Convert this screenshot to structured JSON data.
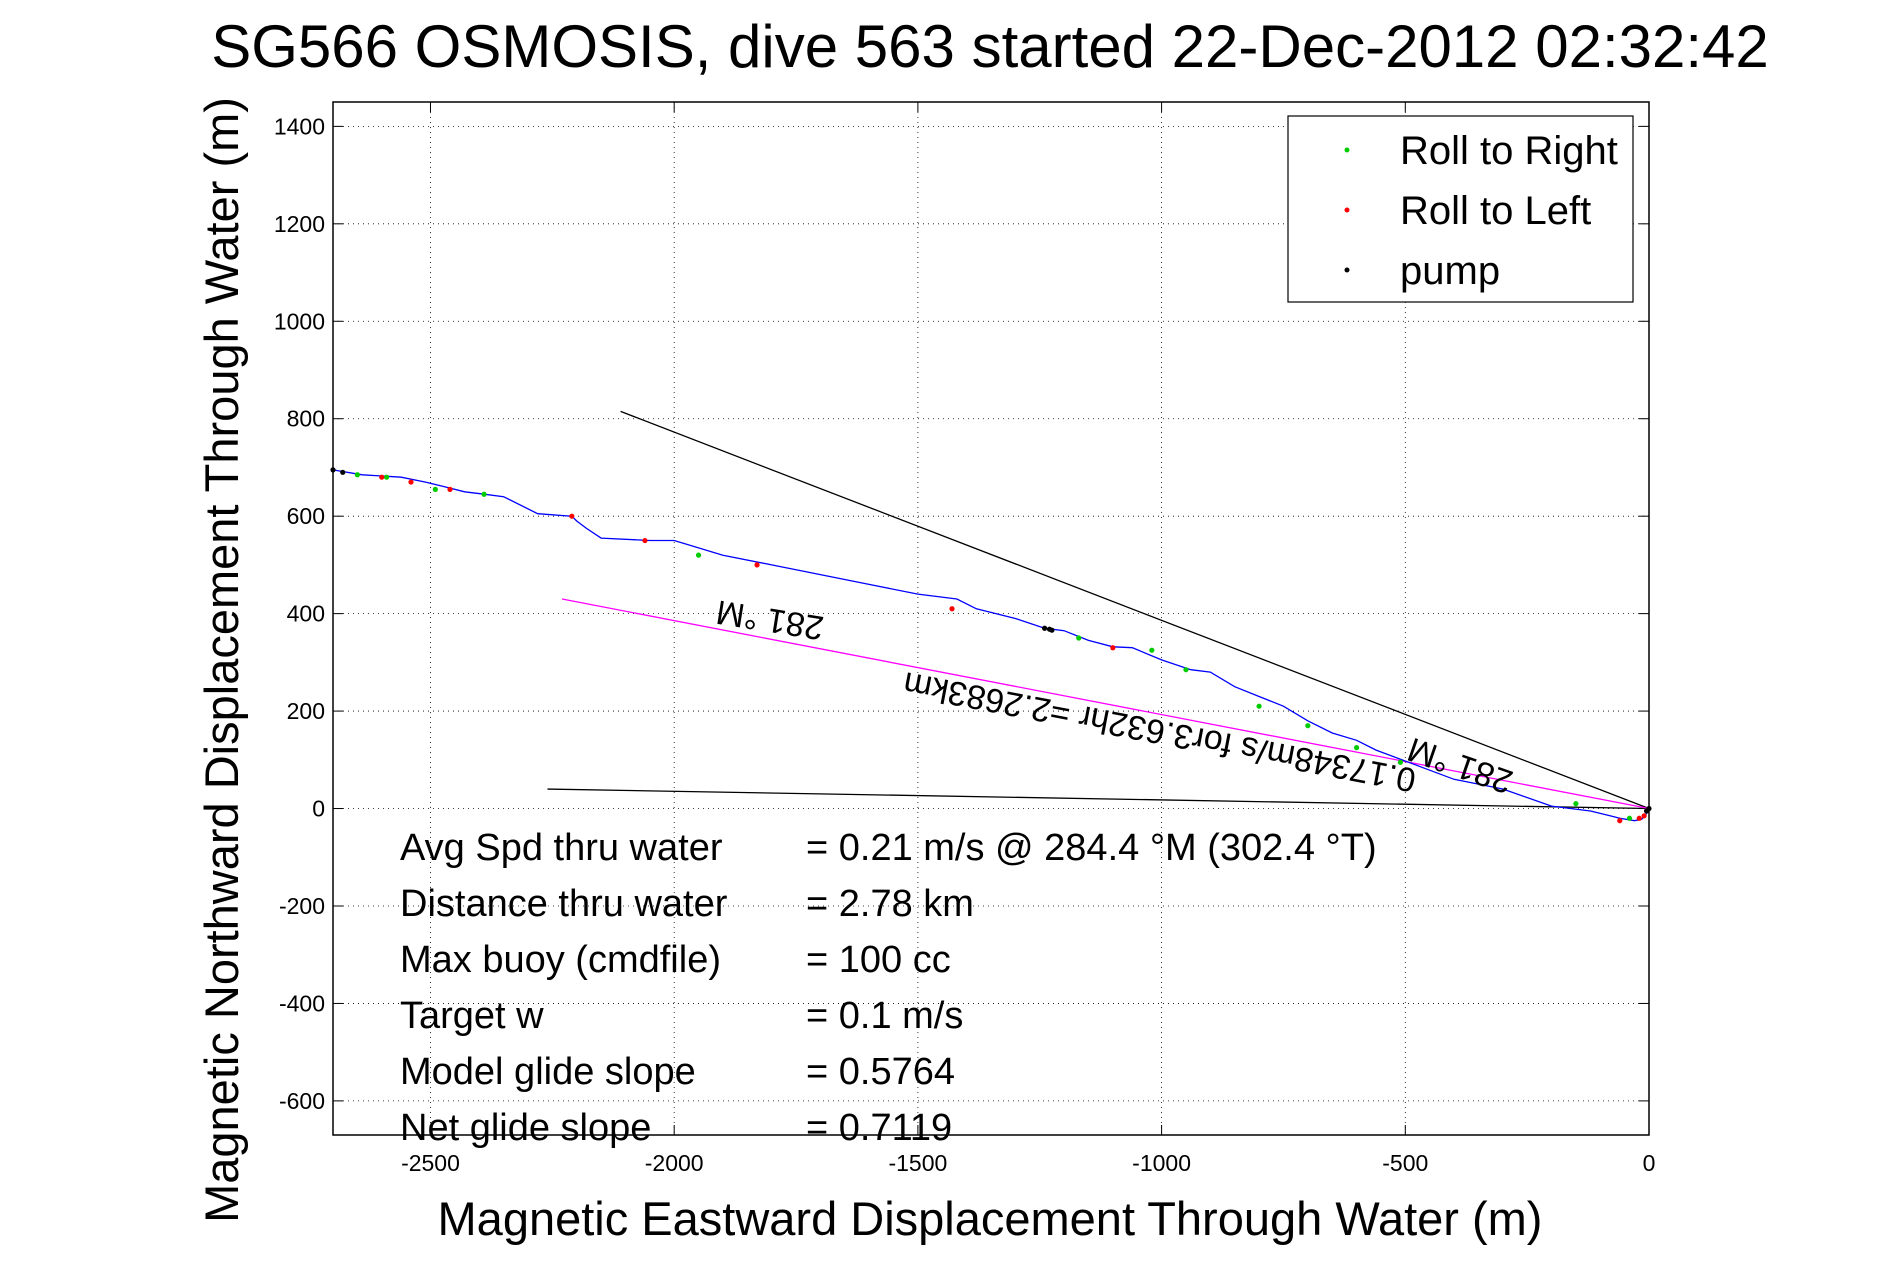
{
  "chart_data": {
    "type": "scatter",
    "title": "SG566 OSMOSIS, dive 563 started 22-Dec-2012 02:32:42",
    "xlabel": "Magnetic Eastward Displacement Through Water (m)",
    "ylabel": "Magnetic Northward Displacement Through Water (m)",
    "xlim": [
      -2700,
      0
    ],
    "ylim": [
      -670,
      1450
    ],
    "xticks": [
      -2500,
      -2000,
      -1500,
      -1000,
      -500,
      0
    ],
    "yticks": [
      -600,
      -400,
      -200,
      0,
      200,
      400,
      600,
      800,
      1000,
      1200,
      1400
    ],
    "grid": true,
    "legend_position": "top-right",
    "legend": [
      {
        "name": "Roll to Right",
        "color": "#00cc00"
      },
      {
        "name": "Roll to Left",
        "color": "#ff0000"
      },
      {
        "name": "pump",
        "color": "#000000"
      }
    ],
    "track": {
      "color": "#0000ff",
      "x": [
        0,
        -5,
        -15,
        -30,
        -60,
        -80,
        -120,
        -200,
        -300,
        -400,
        -480,
        -560,
        -600,
        -650,
        -700,
        -750,
        -800,
        -850,
        -900,
        -940,
        -1000,
        -1060,
        -1100,
        -1150,
        -1200,
        -1240,
        -1300,
        -1380,
        -1420,
        -1500,
        -1600,
        -1700,
        -1800,
        -1900,
        -2000,
        -2050,
        -2150,
        -2180,
        -2200,
        -2210,
        -2280,
        -2350,
        -2390,
        -2430,
        -2470,
        -2510,
        -2560,
        -2640,
        -2700
      ],
      "y": [
        5,
        -10,
        -22,
        -25,
        -20,
        -15,
        -5,
        5,
        40,
        60,
        90,
        120,
        140,
        155,
        180,
        210,
        230,
        250,
        280,
        285,
        305,
        330,
        332,
        345,
        365,
        370,
        390,
        410,
        430,
        440,
        460,
        480,
        500,
        520,
        550,
        550,
        555,
        575,
        590,
        600,
        605,
        640,
        645,
        650,
        660,
        670,
        680,
        685,
        695
      ]
    },
    "roll_right_points": {
      "x": [
        -2650,
        -2590,
        -2490,
        -2390,
        -1950,
        -1170,
        -1020,
        -950,
        -800,
        -700,
        -600,
        -510,
        -150,
        -40
      ],
      "y": [
        685,
        680,
        655,
        645,
        520,
        350,
        325,
        285,
        210,
        170,
        125,
        95,
        10,
        -20
      ]
    },
    "roll_left_points": {
      "x": [
        -2600,
        -2540,
        -2460,
        -2210,
        -2060,
        -1830,
        -1430,
        -1100,
        -60,
        -20,
        -10
      ],
      "y": [
        680,
        670,
        655,
        600,
        550,
        500,
        410,
        330,
        -25,
        -20,
        -15
      ]
    },
    "pump_points": {
      "x": [
        -2700,
        -2680,
        -1240,
        -1230,
        -1225,
        -5,
        0
      ],
      "y": [
        695,
        690,
        370,
        368,
        366,
        -5,
        0
      ]
    },
    "reference_lines": [
      {
        "color": "#000000",
        "x": [
          -2110,
          0
        ],
        "y": [
          815,
          0
        ]
      },
      {
        "color": "#000000",
        "x": [
          -2260,
          0
        ],
        "y": [
          40,
          0
        ]
      },
      {
        "color": "#ff00ff",
        "x": [
          -2230,
          0
        ],
        "y": [
          430,
          0
        ]
      }
    ],
    "line_annotations": [
      {
        "text": "281 °M",
        "x": -1800,
        "y": 410,
        "angle_deg": 189
      },
      {
        "text": "0.17348m/s for3.632hr =2.2683km",
        "x": -1000,
        "y": 180,
        "angle_deg": 190.8
      },
      {
        "text": "281 °M",
        "x": -380,
        "y": 110,
        "angle_deg": 199
      }
    ],
    "stats": [
      {
        "label": "Avg Spd thru water",
        "value": "=  0.21 m/s @ 284.4 °M (302.4 °T)"
      },
      {
        "label": "Distance thru water",
        "value": "=  2.78 km"
      },
      {
        "label": "Max buoy (cmdfile)",
        "value": "= 100 cc"
      },
      {
        "label": "Target w",
        "value": "= 0.1 m/s"
      },
      {
        "label": "Model glide slope",
        "value": "= 0.5764"
      },
      {
        "label": "Net glide slope",
        "value": "= 0.7119"
      }
    ]
  }
}
